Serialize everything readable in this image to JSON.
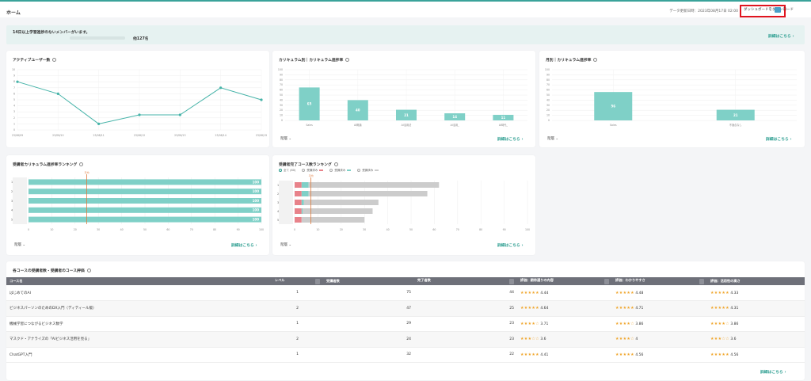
{
  "header": {
    "title": "ホーム",
    "updated": "データ更新日時：2023年08月17日 02:00",
    "download_label": "ダッシュボードをダウンロード"
  },
  "alert": {
    "title": "14日以上学習進捗のないメンバーがいます。",
    "count": "他127名",
    "link": "詳細はこちら ›"
  },
  "active_users": {
    "title": "アクティブユーザー数",
    "chart_data": {
      "type": "line",
      "x": [
        "23/08/09",
        "23/08/10",
        "23/08/11",
        "23/08/12",
        "23/08/13",
        "23/08/14",
        "23/08/15"
      ],
      "values": [
        8,
        6,
        1,
        2.5,
        2.5,
        7,
        5
      ],
      "ylim": [
        0,
        10
      ],
      "yticks": [
        "0",
        "1",
        "2",
        "3",
        "4",
        "5",
        "6",
        "7",
        "8",
        "9",
        "10"
      ],
      "color": "#45b3a8"
    }
  },
  "curriculum": {
    "title": "カリキュラム別｜カリキュラム進捗率",
    "filter": "階層 ⌄",
    "link": "詳細はこちら ›",
    "chart_data": {
      "type": "bar",
      "categories": [
        "Sales",
        "AI概論",
        "AI活用法",
        "AI活用_",
        "AI時代_"
      ],
      "values": [
        65,
        40,
        21,
        14,
        11
      ],
      "ylim": [
        0,
        100
      ],
      "yticks": [
        "0",
        "10",
        "20",
        "30",
        "40",
        "50",
        "60",
        "70",
        "80",
        "90",
        "100"
      ],
      "color": "#7fd0c7"
    }
  },
  "by_month": {
    "title": "月別｜カリキュラム進捗率",
    "filter": "階層 ⌄",
    "link": "詳細はこちら ›",
    "chart_data": {
      "type": "bar",
      "categories": [
        "Sales",
        "不適合なし"
      ],
      "values": [
        56,
        21
      ],
      "ylim": [
        0,
        100
      ],
      "yticks": [
        "0",
        "10",
        "20",
        "30",
        "40",
        "50",
        "60",
        "70",
        "80",
        "90",
        "100"
      ],
      "color": "#7fd0c7"
    }
  },
  "ranking": {
    "title": "受講者カリキュラム進捗率ランキング",
    "filter": "階層 ⌄",
    "link": "詳細はこちら ›",
    "chart_data": {
      "type": "bar",
      "orientation": "horizontal",
      "categories": [
        "1",
        "2",
        "3",
        "4",
        "5"
      ],
      "values": [
        100,
        100,
        100,
        100,
        100
      ],
      "average": 25,
      "average_label": "平均",
      "xlim": [
        0,
        100
      ],
      "xticks": [
        "0",
        "10",
        "20",
        "30",
        "40",
        "50",
        "60",
        "70",
        "80",
        "90",
        "100"
      ],
      "color": "#7fd0c7"
    }
  },
  "course_ranking": {
    "title": "受講者完了コース数ランキング",
    "filter": "階層 ⌄",
    "link": "詳細はこちら ›",
    "legend": [
      {
        "label": "全て (80)",
        "selected": true
      },
      {
        "label": "受講済み",
        "color": "#e8828a"
      },
      {
        "label": "受講済み",
        "color": "#7fd0c7"
      },
      {
        "label": "受講済み",
        "color": "#cccccc"
      }
    ],
    "chart_data": {
      "type": "bar",
      "orientation": "horizontal-stacked",
      "categories": [
        "1",
        "2",
        "3",
        "4",
        "5"
      ],
      "series": [
        {
          "color": "#e8828a",
          "values": [
            3,
            3,
            3,
            3,
            3
          ]
        },
        {
          "color": "#7fd0c7",
          "values": [
            3,
            3,
            1,
            0.5,
            0
          ]
        },
        {
          "color": "#cccccc",
          "values": [
            56,
            51,
            32,
            30,
            27
          ]
        }
      ],
      "average": 7,
      "average_label": "平均",
      "xlim": [
        0,
        100
      ],
      "xticks": [
        "0",
        "10",
        "20",
        "30",
        "40",
        "50",
        "60",
        "70",
        "80",
        "90",
        "100"
      ]
    }
  },
  "course_eval": {
    "title": "各コースの受講者数・受講者のコース評価",
    "link": "詳細はこちら ›",
    "columns": [
      "コース名",
      "レベル",
      "受講者数",
      "完了者数",
      "評価：期待通りの内容",
      "評価：わかりやすさ",
      "評価：活用性の高さ"
    ],
    "rows": [
      {
        "name": "はじめてのAI",
        "level": "1",
        "enrolled": "75",
        "completed": "44",
        "s1": "★★★★★",
        "r1": "4.44",
        "s2": "★★★★★",
        "r2": "4.48",
        "s3": "★★★★★",
        "r3": "4.33"
      },
      {
        "name": "ビジネスパーソンのためのDX入門（ディティール版）",
        "level": "2",
        "enrolled": "47",
        "completed": "25",
        "s1": "★★★★★",
        "r1": "4.64",
        "s2": "★★★★★",
        "r2": "4.71",
        "s3": "★★★★★",
        "r3": "4.31"
      },
      {
        "name": "機械学習につながるビジネス数学",
        "level": "1",
        "enrolled": "29",
        "completed": "23",
        "s1": "★★★★☆",
        "r1": "3.71",
        "s2": "★★★★☆",
        "r2": "3.86",
        "s3": "★★★★☆",
        "r3": "3.86"
      },
      {
        "name": "マスクド・アナライズの「AIビジネス活用を見る」",
        "level": "2",
        "enrolled": "24",
        "completed": "23",
        "s1": "★★★☆☆",
        "r1": "3.6",
        "s2": "★★★★☆",
        "r2": "4",
        "s3": "★★★☆☆",
        "r3": "3.6"
      },
      {
        "name": "ChatGPT入門",
        "level": "1",
        "enrolled": "32",
        "completed": "22",
        "s1": "★★★★★",
        "r1": "4.41",
        "s2": "★★★★★",
        "r2": "4.56",
        "s3": "★★★★★",
        "r3": "4.56"
      }
    ]
  }
}
